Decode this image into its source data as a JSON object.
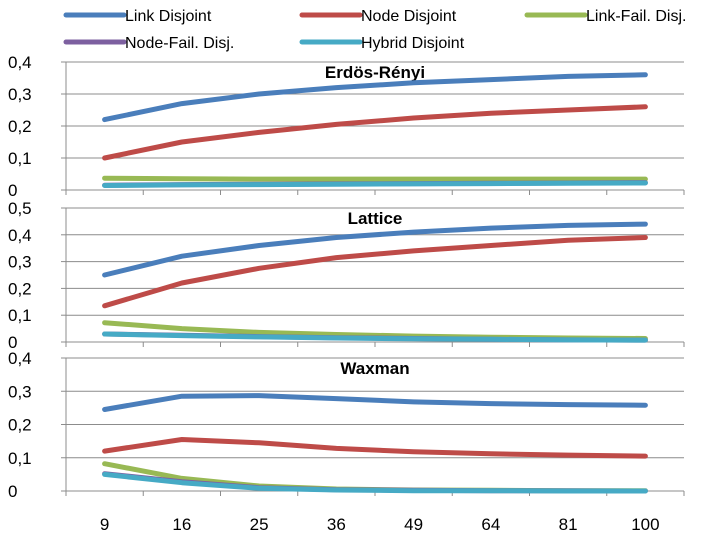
{
  "chart_data": {
    "type": "line",
    "x": [
      "9",
      "16",
      "25",
      "36",
      "49",
      "64",
      "81",
      "100"
    ],
    "legend": {
      "placement": "top",
      "entries": [
        {
          "name": "Link Disjoint",
          "color": "#4a7ebb"
        },
        {
          "name": "Node Disjoint",
          "color": "#be4b48"
        },
        {
          "name": "Link-Fail. Disj.",
          "color": "#98b954"
        },
        {
          "name": "Node-Fail. Disj.",
          "color": "#7d60a0"
        },
        {
          "name": "Hybrid Disjoint",
          "color": "#46aac5"
        }
      ]
    },
    "grid": true,
    "panels": [
      {
        "title": "Erdös-Rényi",
        "ylim": [
          0,
          0.4
        ],
        "yticks": [
          "0",
          "0,1",
          "0,2",
          "0,3",
          "0,4"
        ],
        "series": [
          {
            "name": "Link Disjoint",
            "color": "#4a7ebb",
            "values": [
              0.22,
              0.27,
              0.3,
              0.32,
              0.335,
              0.345,
              0.355,
              0.36
            ]
          },
          {
            "name": "Node Disjoint",
            "color": "#be4b48",
            "values": [
              0.1,
              0.15,
              0.18,
              0.205,
              0.225,
              0.24,
              0.25,
              0.26
            ]
          },
          {
            "name": "Link-Fail. Disj.",
            "color": "#98b954",
            "values": [
              0.037,
              0.035,
              0.034,
              0.034,
              0.034,
              0.034,
              0.034,
              0.034
            ]
          },
          {
            "name": "Node-Fail. Disj.",
            "color": "#7d60a0",
            "values": [
              0.015,
              0.017,
              0.018,
              0.019,
              0.02,
              0.021,
              0.022,
              0.023
            ]
          },
          {
            "name": "Hybrid Disjoint",
            "color": "#46aac5",
            "values": [
              0.014,
              0.016,
              0.017,
              0.018,
              0.019,
              0.02,
              0.021,
              0.022
            ]
          }
        ]
      },
      {
        "title": "Lattice",
        "ylim": [
          0,
          0.5
        ],
        "yticks": [
          "0",
          "0,1",
          "0,2",
          "0,3",
          "0,4",
          "0,5"
        ],
        "series": [
          {
            "name": "Link Disjoint",
            "color": "#4a7ebb",
            "values": [
              0.25,
              0.32,
              0.36,
              0.39,
              0.41,
              0.425,
              0.435,
              0.44
            ]
          },
          {
            "name": "Node Disjoint",
            "color": "#be4b48",
            "values": [
              0.135,
              0.22,
              0.275,
              0.315,
              0.34,
              0.36,
              0.38,
              0.39
            ]
          },
          {
            "name": "Link-Fail. Disj.",
            "color": "#98b954",
            "values": [
              0.072,
              0.05,
              0.036,
              0.028,
              0.022,
              0.018,
              0.015,
              0.013
            ]
          },
          {
            "name": "Node-Fail. Disj.",
            "color": "#7d60a0",
            "values": [
              0.03,
              0.025,
              0.02,
              0.016,
              0.013,
              0.01,
              0.008,
              0.007
            ]
          },
          {
            "name": "Hybrid Disjoint",
            "color": "#46aac5",
            "values": [
              0.03,
              0.024,
              0.019,
              0.015,
              0.012,
              0.01,
              0.008,
              0.007
            ]
          }
        ]
      },
      {
        "title": "Waxman",
        "ylim": [
          0,
          0.4
        ],
        "yticks": [
          "0",
          "0,1",
          "0,2",
          "0,3",
          "0,4"
        ],
        "series": [
          {
            "name": "Link Disjoint",
            "color": "#4a7ebb",
            "values": [
              0.245,
              0.285,
              0.287,
              0.278,
              0.268,
              0.263,
              0.26,
              0.258
            ]
          },
          {
            "name": "Node Disjoint",
            "color": "#be4b48",
            "values": [
              0.12,
              0.155,
              0.145,
              0.128,
              0.118,
              0.112,
              0.108,
              0.105
            ]
          },
          {
            "name": "Link-Fail. Disj.",
            "color": "#98b954",
            "values": [
              0.082,
              0.038,
              0.015,
              0.006,
              0.003,
              0.002,
              0.001,
              0.001
            ]
          },
          {
            "name": "Node-Fail. Disj.",
            "color": "#7d60a0",
            "values": [
              0.052,
              0.028,
              0.01,
              0.004,
              0.002,
              0.001,
              0.001,
              0.0
            ]
          },
          {
            "name": "Hybrid Disjoint",
            "color": "#46aac5",
            "values": [
              0.05,
              0.025,
              0.008,
              0.003,
              0.001,
              0.001,
              0.0,
              0.0
            ]
          }
        ]
      }
    ]
  }
}
